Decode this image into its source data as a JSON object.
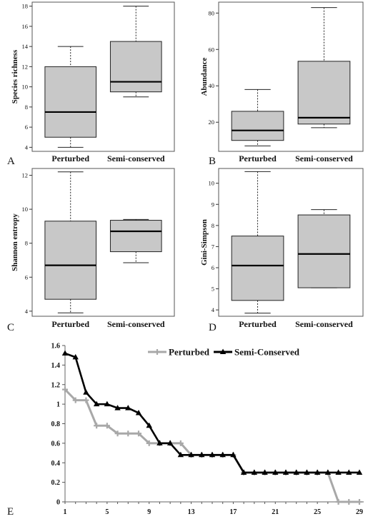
{
  "chart_data": [
    {
      "type": "box",
      "panel": "A",
      "ylabel": "Species richness",
      "categories": [
        "Perturbed",
        "Semi-conserved"
      ],
      "yticks": [
        4,
        6,
        8,
        10,
        12,
        14,
        16,
        18
      ],
      "ylim": [
        3.6,
        18.4
      ],
      "boxes": [
        {
          "min": 4,
          "q1": 5,
          "median": 7.5,
          "q3": 12,
          "max": 14
        },
        {
          "min": 9,
          "q1": 9.5,
          "median": 10.5,
          "q3": 14.5,
          "max": 18
        }
      ]
    },
    {
      "type": "box",
      "panel": "B",
      "ylabel": "Abundance",
      "categories": [
        "Perturbed",
        "Semi-conserved"
      ],
      "yticks": [
        20,
        40,
        60,
        80
      ],
      "ylim": [
        4,
        86
      ],
      "boxes": [
        {
          "min": 7,
          "q1": 10,
          "median": 15.5,
          "q3": 26,
          "max": 38
        },
        {
          "min": 17,
          "q1": 19,
          "median": 22.5,
          "q3": 53.5,
          "max": 83
        }
      ]
    },
    {
      "type": "box",
      "panel": "C",
      "ylabel": "Shannon entropy",
      "categories": [
        "Perturbed",
        "Semi-conserved"
      ],
      "yticks": [
        4,
        6,
        8,
        10,
        12
      ],
      "ylim": [
        3.7,
        12.4
      ],
      "boxes": [
        {
          "min": 3.9,
          "q1": 4.7,
          "median": 6.7,
          "q3": 9.3,
          "max": 12.2
        },
        {
          "min": 6.85,
          "q1": 7.5,
          "median": 8.7,
          "q3": 9.35,
          "max": 9.4
        }
      ]
    },
    {
      "type": "box",
      "panel": "D",
      "ylabel": "Gini-Simpson",
      "categories": [
        "Perturbed",
        "Semi-conserved"
      ],
      "yticks": [
        4,
        5,
        6,
        7,
        8,
        9,
        10
      ],
      "ylim": [
        3.7,
        10.7
      ],
      "boxes": [
        {
          "min": 3.85,
          "q1": 4.45,
          "median": 6.1,
          "q3": 7.5,
          "max": 10.55
        },
        {
          "min": 5.05,
          "q1": 5.05,
          "median": 6.65,
          "q3": 8.5,
          "max": 8.75
        }
      ]
    },
    {
      "type": "line",
      "panel": "E",
      "x": [
        1,
        2,
        3,
        4,
        5,
        6,
        7,
        8,
        9,
        10,
        11,
        12,
        13,
        14,
        15,
        16,
        17,
        18,
        19,
        20,
        21,
        22,
        23,
        24,
        25,
        26,
        27,
        28,
        29
      ],
      "xticks": [
        1,
        5,
        9,
        13,
        17,
        21,
        25,
        29
      ],
      "yticks": [
        0,
        0.2,
        0.4,
        0.6,
        0.8,
        1,
        1.2,
        1.4,
        1.6
      ],
      "ylim": [
        0,
        1.6
      ],
      "series": [
        {
          "name": "Perturbed",
          "color": "#a8a8a8",
          "marker": "plus",
          "values": [
            1.15,
            1.04,
            1.04,
            0.78,
            0.78,
            0.7,
            0.7,
            0.7,
            0.6,
            0.6,
            0.6,
            0.6,
            0.48,
            0.48,
            0.48,
            0.48,
            0.48,
            0.3,
            0.3,
            0.3,
            0.3,
            0.3,
            0.3,
            0.3,
            0.3,
            0.3,
            0,
            0,
            0
          ]
        },
        {
          "name": "Semi-Conserved",
          "color": "#000000",
          "marker": "triangle",
          "values": [
            1.52,
            1.48,
            1.12,
            1.0,
            1.0,
            0.96,
            0.96,
            0.91,
            0.78,
            0.6,
            0.6,
            0.48,
            0.48,
            0.48,
            0.48,
            0.48,
            0.48,
            0.3,
            0.3,
            0.3,
            0.3,
            0.3,
            0.3,
            0.3,
            0.3,
            0.3,
            0.3,
            0.3,
            0.3
          ]
        }
      ]
    }
  ]
}
